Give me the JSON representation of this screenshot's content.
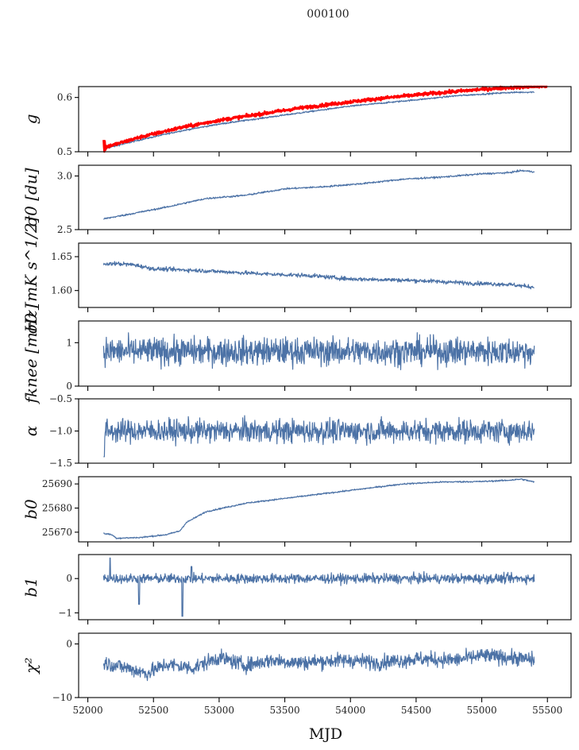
{
  "chart_data": {
    "type": "line",
    "title": "000100",
    "xlabel": "MJD",
    "xlim": [
      51930,
      55680
    ],
    "xticks": [
      52000,
      52500,
      53000,
      53500,
      54000,
      54500,
      55000,
      55500
    ],
    "xtick_labels": [
      "52000",
      "52500",
      "53000",
      "53500",
      "54000",
      "54500",
      "55000",
      "55500"
    ],
    "colors": {
      "series": "#4c72a6",
      "reference": "#ff0000"
    },
    "panels": [
      {
        "id": "g",
        "ylabel": "g",
        "ylim": [
          0.5,
          0.62
        ],
        "yticks": [
          0.5,
          0.6
        ],
        "ytick_labels": [
          "0.5",
          "0.6"
        ],
        "series": [
          {
            "name": "g",
            "color": "#4c72a6",
            "x": [
              52120,
              52200,
              52400,
              52700,
              53000,
              53300,
              53600,
              54000,
              54300,
              54600,
              54800,
              55000,
              55200,
              55400
            ],
            "y": [
              0.505,
              0.51,
              0.522,
              0.538,
              0.551,
              0.561,
              0.571,
              0.584,
              0.591,
              0.598,
              0.603,
              0.606,
              0.609,
              0.61
            ],
            "noise": 0.0007
          },
          {
            "name": "g-reference",
            "color": "#ff0000",
            "x": [
              52120,
              52200,
              52400,
              52700,
              53000,
              53300,
              53600,
              54000,
              54300,
              54600,
              54800,
              55000,
              55200,
              55400,
              55500
            ],
            "y": [
              0.508,
              0.513,
              0.527,
              0.544,
              0.558,
              0.569,
              0.58,
              0.592,
              0.6,
              0.607,
              0.611,
              0.615,
              0.618,
              0.62,
              0.621
            ],
            "noise": 0.0015
          }
        ]
      },
      {
        "id": "sigma0-du",
        "ylabel": "σ0 [du]",
        "ylim": [
          2.5,
          3.1
        ],
        "yticks": [
          2.5,
          3.0
        ],
        "ytick_labels": [
          "2.5",
          "3.0"
        ],
        "series": [
          {
            "name": "sigma0_du",
            "color": "#4c72a6",
            "x": [
              52120,
              52300,
              52600,
              52900,
              53200,
              53500,
              53800,
              54100,
              54400,
              54700,
              55000,
              55200,
              55300,
              55400
            ],
            "y": [
              2.6,
              2.64,
              2.71,
              2.79,
              2.82,
              2.88,
              2.9,
              2.93,
              2.97,
              2.99,
              3.02,
              3.03,
              3.05,
              3.04
            ],
            "noise": 0.004
          }
        ]
      },
      {
        "id": "sigma0-mk",
        "ylabel": "σ0 [mK s^1/2]",
        "ylim": [
          1.575,
          1.67
        ],
        "yticks": [
          1.6,
          1.65
        ],
        "ytick_labels": [
          "1.60",
          "1.65"
        ],
        "series": [
          {
            "name": "sigma0_mk",
            "color": "#4c72a6",
            "x": [
              52120,
              52200,
              52350,
              52500,
              52800,
              53100,
              53400,
              53700,
              54000,
              54300,
              54600,
              54900,
              55200,
              55400
            ],
            "y": [
              1.638,
              1.64,
              1.638,
              1.632,
              1.63,
              1.627,
              1.624,
              1.622,
              1.617,
              1.616,
              1.614,
              1.611,
              1.609,
              1.605
            ],
            "noise": 0.0015
          }
        ]
      },
      {
        "id": "fknee",
        "ylabel": "fknee [mHz]",
        "ylim": [
          0,
          1.5
        ],
        "yticks": [
          0,
          1
        ],
        "ytick_labels": [
          "0",
          "1"
        ],
        "series": [
          {
            "name": "fknee",
            "color": "#4c72a6",
            "x": [
              52120,
              55400
            ],
            "y": [
              0.8,
              0.8
            ],
            "noise": 0.16
          }
        ]
      },
      {
        "id": "alpha",
        "ylabel": "α",
        "ylim": [
          -1.5,
          -0.5
        ],
        "yticks": [
          -1.5,
          -1.0,
          -0.5
        ],
        "ytick_labels": [
          "−1.5",
          "−1.0",
          "−0.5"
        ],
        "series": [
          {
            "name": "alpha",
            "color": "#4c72a6",
            "x": [
              52120,
              55400
            ],
            "y": [
              -1.0,
              -1.0
            ],
            "noise": 0.09
          }
        ]
      },
      {
        "id": "b0",
        "ylabel": "b0",
        "ylim": [
          25666,
          25693
        ],
        "yticks": [
          25670,
          25680,
          25690
        ],
        "ytick_labels": [
          "25670",
          "25680",
          "25690"
        ],
        "series": [
          {
            "name": "b0",
            "color": "#4c72a6",
            "x": [
              52120,
              52180,
              52220,
              52400,
              52600,
              52700,
              52750,
              52900,
              53200,
              53500,
              53800,
              54100,
              54400,
              54700,
              55000,
              55200,
              55300,
              55400
            ],
            "y": [
              25669.5,
              25669,
              25667.5,
              25667.8,
              25669,
              25670.5,
              25674,
              25678.5,
              25682,
              25684,
              25686,
              25688,
              25690,
              25690.8,
              25691,
              25691.5,
              25692,
              25690.8
            ],
            "noise": 0.15
          }
        ]
      },
      {
        "id": "b1",
        "ylabel": "b1",
        "ylim": [
          -1.2,
          0.7
        ],
        "yticks": [
          -1,
          0
        ],
        "ytick_labels": [
          "−1",
          "0"
        ],
        "series": [
          {
            "name": "b1",
            "color": "#4c72a6",
            "x": [
              52120,
              55400
            ],
            "y": [
              0.0,
              0.0
            ],
            "noise": 0.07
          }
        ]
      },
      {
        "id": "chi2",
        "ylabel": "χ²",
        "ylim": [
          -10,
          2
        ],
        "yticks": [
          -10,
          0
        ],
        "ytick_labels": [
          "−10",
          "0"
        ],
        "series": [
          {
            "name": "chi2",
            "color": "#4c72a6",
            "x": [
              52120,
              52300,
              52450,
              52600,
              52800,
              53000,
              53200,
              53400,
              53600,
              53800,
              54000,
              54200,
              54500,
              54800,
              55000,
              55200,
              55400
            ],
            "y": [
              -3.5,
              -4.5,
              -5.5,
              -3.8,
              -4.5,
              -2.5,
              -4.0,
              -3.0,
              -3.5,
              -3.2,
              -3.0,
              -3.5,
              -2.8,
              -3.0,
              -2.2,
              -2.5,
              -3.0
            ],
            "noise": 0.7
          }
        ]
      }
    ]
  }
}
